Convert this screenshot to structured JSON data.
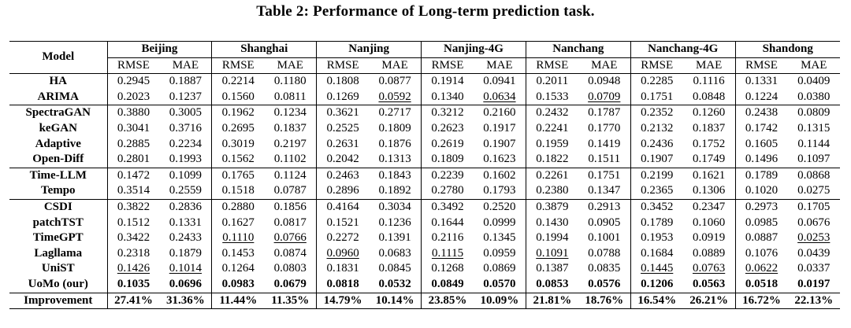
{
  "caption": "Table 2: Performance of Long-term prediction task.",
  "header": {
    "model": "Model",
    "datasets": [
      "Beijing",
      "Shanghai",
      "Nanjing",
      "Nanjing-4G",
      "Nanchang",
      "Nanchang-4G",
      "Shandong"
    ],
    "metrics": [
      "RMSE",
      "MAE"
    ]
  },
  "groups": [
    [
      {
        "model": "HA",
        "vals": [
          "0.2945",
          "0.1887",
          "0.2214",
          "0.1180",
          "0.1808",
          "0.0877",
          "0.1914",
          "0.0941",
          "0.2011",
          "0.0948",
          "0.2285",
          "0.1116",
          "0.1331",
          "0.0409"
        ],
        "style": [
          "",
          "",
          "",
          "",
          "",
          "",
          "",
          "",
          "",
          "",
          "",
          "",
          "",
          ""
        ]
      },
      {
        "model": "ARIMA",
        "vals": [
          "0.2023",
          "0.1237",
          "0.1560",
          "0.0811",
          "0.1269",
          "0.0592",
          "0.1340",
          "0.0634",
          "0.1533",
          "0.0709",
          "0.1751",
          "0.0848",
          "0.1224",
          "0.0380"
        ],
        "style": [
          "",
          "",
          "",
          "",
          "",
          "u",
          "",
          "u",
          "",
          "u",
          "",
          "",
          "",
          ""
        ]
      }
    ],
    [
      {
        "model": "SpectraGAN",
        "vals": [
          "0.3880",
          "0.3005",
          "0.1962",
          "0.1234",
          "0.3621",
          "0.2717",
          "0.3212",
          "0.2160",
          "0.2432",
          "0.1787",
          "0.2352",
          "0.1260",
          "0.2438",
          "0.0809"
        ],
        "style": [
          "",
          "",
          "",
          "",
          "",
          "",
          "",
          "",
          "",
          "",
          "",
          "",
          "",
          ""
        ]
      },
      {
        "model": "keGAN",
        "vals": [
          "0.3041",
          "0.3716",
          "0.2695",
          "0.1837",
          "0.2525",
          "0.1809",
          "0.2623",
          "0.1917",
          "0.2241",
          "0.1770",
          "0.2132",
          "0.1837",
          "0.1742",
          "0.1315"
        ],
        "style": [
          "",
          "",
          "",
          "",
          "",
          "",
          "",
          "",
          "",
          "",
          "",
          "",
          "",
          ""
        ]
      },
      {
        "model": "Adaptive",
        "vals": [
          "0.2885",
          "0.2234",
          "0.3019",
          "0.2197",
          "0.2631",
          "0.1876",
          "0.2619",
          "0.1907",
          "0.1959",
          "0.1419",
          "0.2436",
          "0.1752",
          "0.1605",
          "0.1144"
        ],
        "style": [
          "",
          "",
          "",
          "",
          "",
          "",
          "",
          "",
          "",
          "",
          "",
          "",
          "",
          ""
        ]
      },
      {
        "model": "Open-Diff",
        "vals": [
          "0.2801",
          "0.1993",
          "0.1562",
          "0.1102",
          "0.2042",
          "0.1313",
          "0.1809",
          "0.1623",
          "0.1822",
          "0.1511",
          "0.1907",
          "0.1749",
          "0.1496",
          "0.1097"
        ],
        "style": [
          "",
          "",
          "",
          "",
          "",
          "",
          "",
          "",
          "",
          "",
          "",
          "",
          "",
          ""
        ]
      }
    ],
    [
      {
        "model": "Time-LLM",
        "vals": [
          "0.1472",
          "0.1099",
          "0.1765",
          "0.1124",
          "0.2463",
          "0.1843",
          "0.2239",
          "0.1602",
          "0.2261",
          "0.1751",
          "0.2199",
          "0.1621",
          "0.1789",
          "0.0868"
        ],
        "style": [
          "",
          "",
          "",
          "",
          "",
          "",
          "",
          "",
          "",
          "",
          "",
          "",
          "",
          ""
        ]
      },
      {
        "model": "Tempo",
        "vals": [
          "0.3514",
          "0.2559",
          "0.1518",
          "0.0787",
          "0.2896",
          "0.1892",
          "0.2780",
          "0.1793",
          "0.2380",
          "0.1347",
          "0.2365",
          "0.1306",
          "0.1020",
          "0.0275"
        ],
        "style": [
          "",
          "",
          "",
          "",
          "",
          "",
          "",
          "",
          "",
          "",
          "",
          "",
          "",
          ""
        ]
      }
    ],
    [
      {
        "model": "CSDI",
        "vals": [
          "0.3822",
          "0.2836",
          "0.2880",
          "0.1856",
          "0.4164",
          "0.3034",
          "0.3492",
          "0.2520",
          "0.3879",
          "0.2913",
          "0.3452",
          "0.2347",
          "0.2973",
          "0.1705"
        ],
        "style": [
          "",
          "",
          "",
          "",
          "",
          "",
          "",
          "",
          "",
          "",
          "",
          "",
          "",
          ""
        ]
      },
      {
        "model": "patchTST",
        "vals": [
          "0.1512",
          "0.1331",
          "0.1627",
          "0.0817",
          "0.1521",
          "0.1236",
          "0.1644",
          "0.0999",
          "0.1430",
          "0.0905",
          "0.1789",
          "0.1060",
          "0.0985",
          "0.0676"
        ],
        "style": [
          "",
          "",
          "",
          "",
          "",
          "",
          "",
          "",
          "",
          "",
          "",
          "",
          "",
          ""
        ]
      },
      {
        "model": "TimeGPT",
        "vals": [
          "0.3422",
          "0.2433",
          "0.1110",
          "0.0766",
          "0.2272",
          "0.1391",
          "0.2116",
          "0.1345",
          "0.1994",
          "0.1001",
          "0.1953",
          "0.0919",
          "0.0887",
          "0.0253"
        ],
        "style": [
          "",
          "",
          "u",
          "u",
          "",
          "",
          "",
          "",
          "",
          "",
          "",
          "",
          "",
          "u"
        ]
      },
      {
        "model": "Lagllama",
        "vals": [
          "0.2318",
          "0.1879",
          "0.1453",
          "0.0874",
          "0.0960",
          "0.0683",
          "0.1115",
          "0.0959",
          "0.1091",
          "0.0788",
          "0.1684",
          "0.0889",
          "0.1076",
          "0.0439"
        ],
        "style": [
          "",
          "",
          "",
          "",
          "u",
          "",
          "u",
          "",
          "u",
          "",
          "",
          "",
          "",
          ""
        ]
      },
      {
        "model": "UniST",
        "vals": [
          "0.1426",
          "0.1014",
          "0.1264",
          "0.0803",
          "0.1831",
          "0.0845",
          "0.1268",
          "0.0869",
          "0.1387",
          "0.0835",
          "0.1445",
          "0.0763",
          "0.0622",
          "0.0337"
        ],
        "style": [
          "u",
          "u",
          "",
          "",
          "",
          "",
          "",
          "",
          "",
          "",
          "u",
          "u",
          "u",
          ""
        ]
      },
      {
        "model": "UoMo (our)",
        "vals": [
          "0.1035",
          "0.0696",
          "0.0983",
          "0.0679",
          "0.0818",
          "0.0532",
          "0.0849",
          "0.0570",
          "0.0853",
          "0.0576",
          "0.1206",
          "0.0563",
          "0.0518",
          "0.0197"
        ],
        "style": [
          "b",
          "b",
          "b",
          "b",
          "b",
          "b",
          "b",
          "b",
          "b",
          "b",
          "b",
          "b",
          "b",
          "b"
        ]
      }
    ]
  ],
  "improvement": {
    "model": "Improvement",
    "vals": [
      "27.41%",
      "31.36%",
      "11.44%",
      "11.35%",
      "14.79%",
      "10.14%",
      "23.85%",
      "10.09%",
      "21.81%",
      "18.76%",
      "16.54%",
      "26.21%",
      "16.72%",
      "22.13%"
    ]
  }
}
